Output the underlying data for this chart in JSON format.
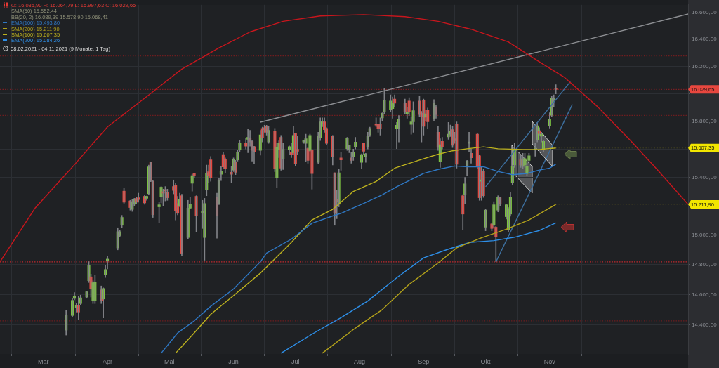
{
  "chart_data": {
    "type": "candlestick",
    "title": "O: 16.035,90  H: 16.064,79  L: 15.997,63  C: 16.029,65",
    "subtitle": "08.02.2021 - 04.11.2021  (9 Monate, 1 Tag)",
    "x": [
      "2021-03-12",
      "2021-03-15",
      "2021-03-16",
      "2021-03-17",
      "2021-03-18",
      "2021-03-19",
      "2021-03-22",
      "2021-03-23",
      "2021-03-24",
      "2021-03-25",
      "2021-03-26",
      "2021-03-29",
      "2021-03-30",
      "2021-03-31",
      "2021-04-01",
      "2021-04-06",
      "2021-04-07",
      "2021-04-08",
      "2021-04-09",
      "2021-04-12",
      "2021-04-13",
      "2021-04-14",
      "2021-04-15",
      "2021-04-16",
      "2021-04-19",
      "2021-04-20",
      "2021-04-21",
      "2021-04-22",
      "2021-04-23",
      "2021-04-26",
      "2021-04-27",
      "2021-04-28",
      "2021-04-29",
      "2021-04-30",
      "2021-05-03",
      "2021-05-04",
      "2021-05-05",
      "2021-05-06",
      "2021-05-07",
      "2021-05-10",
      "2021-05-11",
      "2021-05-12",
      "2021-05-13",
      "2021-05-14",
      "2021-05-17",
      "2021-05-18",
      "2021-05-19",
      "2021-05-20",
      "2021-05-21",
      "2021-05-24",
      "2021-05-25",
      "2021-05-26",
      "2021-05-27",
      "2021-05-28",
      "2021-05-31",
      "2021-06-01",
      "2021-06-02",
      "2021-06-03",
      "2021-06-04",
      "2021-06-07",
      "2021-06-08",
      "2021-06-09",
      "2021-06-10",
      "2021-06-11",
      "2021-06-14",
      "2021-06-15",
      "2021-06-16",
      "2021-06-17",
      "2021-06-18",
      "2021-06-21",
      "2021-06-22",
      "2021-06-23",
      "2021-06-24",
      "2021-06-25",
      "2021-06-28",
      "2021-06-29",
      "2021-06-30",
      "2021-07-01",
      "2021-07-02",
      "2021-07-05",
      "2021-07-06",
      "2021-07-07",
      "2021-07-08",
      "2021-07-09",
      "2021-07-12",
      "2021-07-13",
      "2021-07-14",
      "2021-07-15",
      "2021-07-16",
      "2021-07-19",
      "2021-07-20",
      "2021-07-21",
      "2021-07-22",
      "2021-07-23",
      "2021-07-26",
      "2021-07-27",
      "2021-07-28",
      "2021-07-29",
      "2021-07-30",
      "2021-08-02",
      "2021-08-03",
      "2021-08-04",
      "2021-08-05",
      "2021-08-06",
      "2021-08-09",
      "2021-08-10",
      "2021-08-11",
      "2021-08-12",
      "2021-08-13",
      "2021-08-16",
      "2021-08-17",
      "2021-08-18",
      "2021-08-19",
      "2021-08-20",
      "2021-08-23",
      "2021-08-24",
      "2021-08-25",
      "2021-08-26",
      "2021-08-27",
      "2021-08-30",
      "2021-08-31",
      "2021-09-01",
      "2021-09-02",
      "2021-09-03",
      "2021-09-06",
      "2021-09-07",
      "2021-09-08",
      "2021-09-09",
      "2021-09-10",
      "2021-09-13",
      "2021-09-14",
      "2021-09-15",
      "2021-09-16",
      "2021-09-17",
      "2021-09-20",
      "2021-09-21",
      "2021-09-22",
      "2021-09-23",
      "2021-09-24",
      "2021-09-27",
      "2021-09-28",
      "2021-09-29",
      "2021-09-30",
      "2021-10-01",
      "2021-10-04",
      "2021-10-05",
      "2021-10-06",
      "2021-10-07",
      "2021-10-08",
      "2021-10-11",
      "2021-10-12",
      "2021-10-13",
      "2021-10-14",
      "2021-10-15",
      "2021-10-18",
      "2021-10-19",
      "2021-10-20",
      "2021-10-21",
      "2021-10-22",
      "2021-10-25",
      "2021-10-26",
      "2021-10-27",
      "2021-10-28",
      "2021-10-29",
      "2021-11-01",
      "2021-11-02",
      "2021-11-03",
      "2021-11-04"
    ],
    "ohlc": [
      [
        14365,
        14496,
        14333,
        14461
      ],
      [
        14461,
        14574,
        14450,
        14561
      ],
      [
        14574,
        14613,
        14565,
        14591
      ],
      [
        14514,
        14544,
        14484,
        14527
      ],
      [
        14527,
        14591,
        14432,
        14484
      ],
      [
        14540,
        14596,
        14530,
        14578
      ],
      [
        14583,
        14622,
        14575,
        14618
      ],
      [
        14692,
        14820,
        14680,
        14793
      ],
      [
        14718,
        14736,
        14583,
        14640
      ],
      [
        14561,
        14692,
        14540,
        14679
      ],
      [
        14561,
        14727,
        14540,
        14683
      ],
      [
        14631,
        14657,
        14540,
        14561
      ],
      [
        14570,
        14645,
        14445,
        14640
      ],
      [
        14732,
        14793,
        14714,
        14767
      ],
      [
        14828,
        14859,
        14771,
        14837
      ],
      [
        14913,
        15051,
        14900,
        15024
      ],
      [
        14997,
        15032,
        14990,
        15024
      ],
      [
        15068,
        15136,
        15051,
        15122
      ],
      [
        15304,
        15327,
        15220,
        15227
      ],
      [
        15236,
        15240,
        15172,
        15190
      ],
      [
        15177,
        15245,
        15163,
        15227
      ],
      [
        15213,
        15254,
        15200,
        15245
      ],
      [
        15254,
        15263,
        15218,
        15227
      ],
      [
        15258,
        15290,
        15227,
        15245
      ],
      [
        15268,
        15276,
        15213,
        15222
      ],
      [
        15254,
        15270,
        15240,
        15268
      ],
      [
        15286,
        15487,
        15280,
        15474
      ],
      [
        15506,
        15510,
        15370,
        15377
      ],
      [
        15373,
        15377,
        15122,
        15141
      ],
      [
        15195,
        15227,
        15086,
        15209
      ],
      [
        15263,
        15336,
        15222,
        15332
      ],
      [
        15300,
        15318,
        15204,
        15290
      ],
      [
        15313,
        15336,
        15236,
        15305
      ],
      [
        15295,
        15318,
        15240,
        15258
      ],
      [
        15336,
        15382,
        15285,
        15309
      ],
      [
        15345,
        15359,
        15104,
        15168
      ],
      [
        15218,
        15268,
        15140,
        15150
      ],
      [
        15204,
        15290,
        15195,
        15249
      ],
      [
        15272,
        15282,
        14859,
        14877
      ],
      [
        14984,
        15240,
        14975,
        15186
      ],
      [
        15186,
        15263,
        15180,
        15213
      ],
      [
        15359,
        15422,
        15304,
        15413
      ],
      [
        15427,
        15431,
        15400,
        15409
      ],
      [
        15268,
        15272,
        15024,
        15131
      ],
      [
        15154,
        15240,
        15046,
        15163
      ],
      [
        14984,
        15254,
        14830,
        15218
      ],
      [
        15313,
        15487,
        15272,
        15431
      ],
      [
        15440,
        15487,
        15364,
        15409
      ],
      [
        15524,
        15547,
        15373,
        15395
      ],
      [
        15263,
        15290,
        14979,
        15131
      ],
      [
        15218,
        15391,
        15210,
        15382
      ],
      [
        15422,
        15478,
        15377,
        15445
      ],
      [
        15561,
        15580,
        15460,
        15474
      ],
      [
        15529,
        15538,
        15430,
        15460
      ],
      [
        15436,
        15478,
        15364,
        15422
      ],
      [
        15451,
        15538,
        15440,
        15529
      ],
      [
        15510,
        15520,
        15420,
        15436
      ],
      [
        15524,
        15594,
        15515,
        15575
      ],
      [
        15594,
        15660,
        15580,
        15640
      ],
      [
        15640,
        15680,
        15600,
        15620
      ],
      [
        15669,
        15743,
        15575,
        15683
      ],
      [
        15678,
        15734,
        15620,
        15650
      ],
      [
        15655,
        15664,
        15515,
        15590
      ],
      [
        15617,
        15620,
        15496,
        15580
      ],
      [
        15590,
        15734,
        15557,
        15701
      ],
      [
        15748,
        15757,
        15650,
        15678
      ],
      [
        15753,
        15771,
        15720,
        15739
      ],
      [
        15762,
        15771,
        15700,
        15720
      ],
      [
        15650,
        15762,
        15640,
        15734
      ],
      [
        15725,
        15748,
        15440,
        15460
      ],
      [
        15400,
        15645,
        15327,
        15612
      ],
      [
        15594,
        15659,
        15540,
        15645
      ],
      [
        15683,
        15697,
        15450,
        15465
      ],
      [
        15533,
        15640,
        15455,
        15598
      ],
      [
        15594,
        15622,
        15560,
        15617
      ],
      [
        15580,
        15640,
        15540,
        15561
      ],
      [
        15575,
        15762,
        15560,
        15697
      ],
      [
        15711,
        15715,
        15480,
        15496
      ],
      [
        15598,
        15690,
        15560,
        15584
      ],
      [
        15650,
        15660,
        15640,
        15655
      ],
      [
        15640,
        15706,
        15510,
        15673
      ],
      [
        15603,
        15610,
        15500,
        15520
      ],
      [
        15589,
        15706,
        15580,
        15697
      ],
      [
        15594,
        15598,
        15318,
        15427
      ],
      [
        15506,
        15720,
        15496,
        15692
      ],
      [
        15678,
        15823,
        15660,
        15795
      ],
      [
        15781,
        15823,
        15760,
        15795
      ],
      [
        15795,
        15823,
        15720,
        15739
      ],
      [
        15748,
        15753,
        15630,
        15641
      ],
      [
        15692,
        15697,
        15487,
        15547
      ],
      [
        15432,
        15432,
        15068,
        15150
      ],
      [
        15249,
        15309,
        15113,
        15231
      ],
      [
        15213,
        15460,
        15195,
        15432
      ],
      [
        15538,
        15580,
        15450,
        15524
      ],
      [
        15603,
        15683,
        15590,
        15678
      ],
      [
        15594,
        15630,
        15575,
        15627
      ],
      [
        15538,
        15580,
        15500,
        15520
      ],
      [
        15547,
        15600,
        15520,
        15580
      ],
      [
        15617,
        15683,
        15600,
        15650
      ],
      [
        15506,
        15566,
        15460,
        15561
      ],
      [
        15641,
        15645,
        15560,
        15584
      ],
      [
        15547,
        15570,
        15506,
        15566
      ],
      [
        15617,
        15720,
        15600,
        15692
      ],
      [
        15701,
        15757,
        15690,
        15748
      ],
      [
        15781,
        15823,
        15760,
        15771
      ],
      [
        15776,
        15780,
        15720,
        15748
      ],
      [
        15776,
        15823,
        15700,
        15748
      ],
      [
        15823,
        15860,
        15800,
        15856
      ],
      [
        15866,
        16040,
        15850,
        15950
      ],
      [
        15884,
        15990,
        15870,
        15946
      ],
      [
        15890,
        15975,
        15820,
        15930
      ],
      [
        15960,
        15990,
        15900,
        15930
      ],
      [
        15743,
        15790,
        15603,
        15771
      ],
      [
        15743,
        15840,
        15650,
        15813
      ],
      [
        15930,
        15960,
        15850,
        15866
      ],
      [
        15855,
        15900,
        15820,
        15866
      ],
      [
        15946,
        15970,
        15840,
        15866
      ],
      [
        15776,
        15832,
        15706,
        15795
      ],
      [
        15795,
        15940,
        15720,
        15875
      ],
      [
        15946,
        15980,
        15830,
        15847
      ],
      [
        15856,
        15870,
        15650,
        15832
      ],
      [
        15950,
        15960,
        15700,
        15762
      ],
      [
        15828,
        15880,
        15800,
        15852
      ],
      [
        15880,
        15894,
        15743,
        15795
      ],
      [
        15818,
        15955,
        15800,
        15932
      ],
      [
        15903,
        15913,
        15820,
        15847
      ],
      [
        15720,
        15762,
        15590,
        15612
      ],
      [
        15510,
        15673,
        15470,
        15631
      ],
      [
        15655,
        15683,
        15600,
        15617
      ],
      [
        15687,
        15790,
        15669,
        15706
      ],
      [
        15706,
        15772,
        15690,
        15725
      ],
      [
        15739,
        15762,
        15610,
        15627
      ],
      [
        15673,
        15720,
        15640,
        15659
      ],
      [
        15776,
        15795,
        15465,
        15492
      ],
      [
        15272,
        15280,
        15037,
        15145
      ],
      [
        15282,
        15400,
        15218,
        15355
      ],
      [
        15474,
        15520,
        15409,
        15515
      ],
      [
        15641,
        15720,
        15580,
        15650
      ],
      [
        15570,
        15600,
        15500,
        15538
      ],
      [
        15706,
        15710,
        15460,
        15478
      ],
      [
        15552,
        15560,
        15240,
        15258
      ],
      [
        15373,
        15480,
        15240,
        15382
      ],
      [
        15446,
        15460,
        15260,
        15272
      ],
      [
        15055,
        15180,
        15030,
        15172
      ],
      [
        15077,
        15080,
        15030,
        15046
      ],
      [
        15068,
        15231,
        15050,
        15209
      ],
      [
        15055,
        15060,
        14820,
        14988
      ],
      [
        15172,
        15272,
        15160,
        15263
      ],
      [
        15258,
        15263,
        15200,
        15218
      ],
      [
        15127,
        15215,
        15110,
        15209
      ],
      [
        15037,
        15190,
        15020,
        15181
      ],
      [
        15145,
        15295,
        15130,
        15263
      ],
      [
        15364,
        15485,
        15350,
        15478
      ],
      [
        15487,
        15640,
        15470,
        15594
      ],
      [
        15524,
        15560,
        15470,
        15487
      ],
      [
        15478,
        15570,
        15460,
        15533
      ],
      [
        15487,
        15570,
        15470,
        15533
      ],
      [
        15427,
        15500,
        15410,
        15478
      ],
      [
        15520,
        15570,
        15500,
        15552
      ],
      [
        15594,
        15640,
        15550,
        15608
      ],
      [
        15664,
        15790,
        15650,
        15767
      ],
      [
        15729,
        15753,
        15700,
        15711
      ],
      [
        15692,
        15720,
        15650,
        15706
      ],
      [
        15594,
        15664,
        15580,
        15655
      ],
      [
        15767,
        15860,
        15750,
        15813
      ],
      [
        15842,
        15980,
        15830,
        15965
      ],
      [
        15955,
        15990,
        15900,
        15960
      ],
      [
        16035.9,
        16064.79,
        15997.63,
        16029.65
      ]
    ],
    "colors": [
      "#7cc242",
      "#7cc242",
      "#7cc242",
      "#7cc242",
      "#e8473f",
      "#7cc242",
      "#7cc242",
      "#7cc242",
      "#e8473f",
      "#7cc242",
      "#7cc242",
      "#e8473f",
      "#7cc242",
      "#7cc242",
      "#7cc242",
      "#7cc242",
      "#7cc242",
      "#7cc242",
      "#e8473f",
      "#e8473f",
      "#7cc242",
      "#7cc242",
      "#e8473f",
      "#e8473f",
      "#e8473f",
      "#7cc242",
      "#7cc242",
      "#e8473f",
      "#e8473f",
      "#7cc242",
      "#7cc242",
      "#e8473f",
      "#e8473f",
      "#e8473f",
      "#e8473f",
      "#e8473f",
      "#e8473f",
      "#7cc242",
      "#e8473f",
      "#7cc242",
      "#7cc242",
      "#7cc242",
      "#e8473f",
      "#e8473f",
      "#7cc242",
      "#7cc242",
      "#7cc242",
      "#e8473f",
      "#e8473f",
      "#e8473f",
      "#7cc242",
      "#7cc242",
      "#e8473f",
      "#e8473f",
      "#e8473f",
      "#7cc242",
      "#e8473f",
      "#7cc242",
      "#7cc242",
      "#e8473f",
      "#7cc242",
      "#e8473f",
      "#e8473f",
      "#e8473f",
      "#7cc242",
      "#e8473f",
      "#e8473f",
      "#e8473f",
      "#7cc242",
      "#e8473f",
      "#7cc242",
      "#7cc242",
      "#e8473f",
      "#7cc242",
      "#7cc242",
      "#e8473f",
      "#7cc242",
      "#e8473f",
      "#e8473f",
      "#7cc242",
      "#7cc242",
      "#e8473f",
      "#7cc242",
      "#e8473f",
      "#7cc242",
      "#7cc242",
      "#7cc242",
      "#e8473f",
      "#e8473f",
      "#e8473f",
      "#e8473f",
      "#e8473f",
      "#7cc242",
      "#e8473f",
      "#7cc242",
      "#7cc242",
      "#e8473f",
      "#7cc242",
      "#7cc242",
      "#7cc242",
      "#e8473f",
      "#7cc242",
      "#7cc242",
      "#7cc242",
      "#e8473f",
      "#e8473f",
      "#e8473f",
      "#7cc242",
      "#7cc242",
      "#7cc242",
      "#7cc242",
      "#e8473f",
      "#7cc242",
      "#7cc242",
      "#e8473f",
      "#7cc242",
      "#e8473f",
      "#7cc242",
      "#7cc242",
      "#e8473f",
      "#e8473f",
      "#e8473f",
      "#7cc242",
      "#e8473f",
      "#7cc242",
      "#e8473f",
      "#e8473f",
      "#7cc242",
      "#e8473f",
      "#7cc242",
      "#7cc242",
      "#e8473f",
      "#e8473f",
      "#e8473f",
      "#e8473f",
      "#7cc242",
      "#7cc242",
      "#7cc242",
      "#e8473f",
      "#e8473f",
      "#e8473f",
      "#7cc242",
      "#e8473f",
      "#7cc242",
      "#e8473f",
      "#7cc242",
      "#e8473f",
      "#7cc242",
      "#e8473f",
      "#7cc242",
      "#7cc242",
      "#7cc242",
      "#7cc242",
      "#7cc242",
      "#e8473f",
      "#7cc242",
      "#7cc242",
      "#7cc242",
      "#7cc242",
      "#7cc242",
      "#7cc242",
      "#e8473f",
      "#7cc242",
      "#7cc242",
      "#7cc242",
      "#7cc242",
      "#7cc242",
      "#e8473f"
    ],
    "series": [
      {
        "type": "line",
        "name": "EMA(100)  15.493,80",
        "color": "#2f78c4",
        "x": [
          "2021-04-27",
          "2021-05-05",
          "2021-05-13",
          "2021-05-21",
          "2021-06-01",
          "2021-06-14",
          "2021-06-17",
          "2021-06-29",
          "2021-07-09",
          "2021-07-19",
          "2021-07-23",
          "2021-08-03",
          "2021-08-12",
          "2021-08-19",
          "2021-09-01",
          "2021-09-08",
          "2021-09-16",
          "2021-09-23",
          "2021-09-30",
          "2021-10-07",
          "2021-10-14",
          "2021-10-21",
          "2021-10-27",
          "2021-11-01",
          "2021-11-04"
        ],
        "values": [
          14215,
          14347,
          14426,
          14522,
          14637,
          14819,
          14878,
          14973,
          15082,
          15132,
          15150,
          15219,
          15279,
          15335,
          15428,
          15456,
          15480,
          15475,
          15475,
          15442,
          15419,
          15428,
          15452,
          15465,
          15493.8
        ]
      },
      {
        "type": "line",
        "name": "SMA(200)  15.211,90",
        "color": "#b3a21b",
        "x": [
          "2021-07-14",
          "2021-07-29",
          "2021-08-12",
          "2021-08-25",
          "2021-09-08",
          "2021-09-17",
          "2021-09-29",
          "2021-10-11",
          "2021-10-22",
          "2021-11-04"
        ],
        "values": [
          14215,
          14369,
          14500,
          14668,
          14811,
          14914,
          14982,
          15041,
          15105,
          15211.9
        ],
        "value_labels": [
          null,
          null,
          null,
          null,
          null,
          null,
          null,
          null,
          null,
          "15.211,90"
        ]
      },
      {
        "type": "line",
        "name": "SMA(100)  15.607,35",
        "color": "#bdb21f",
        "x": [
          "2021-05-04",
          "2021-05-13",
          "2021-05-21",
          "2021-06-01",
          "2021-06-14",
          "2021-06-29",
          "2021-07-09",
          "2021-07-19",
          "2021-07-29",
          "2021-08-09",
          "2021-08-18",
          "2021-08-30",
          "2021-09-07",
          "2021-09-15",
          "2021-09-22",
          "2021-09-30",
          "2021-10-07",
          "2021-10-19",
          "2021-10-27",
          "2021-11-04"
        ],
        "values": [
          14215,
          14347,
          14469,
          14592,
          14743,
          14950,
          15105,
          15178,
          15302,
          15372,
          15465,
          15522,
          15559,
          15588,
          15602,
          15616,
          15602,
          15597,
          15597,
          15607.35
        ],
        "value_labels": [
          null,
          null,
          null,
          null,
          null,
          null,
          null,
          null,
          null,
          null,
          null,
          null,
          null,
          null,
          null,
          null,
          null,
          null,
          null,
          "15.607,35"
        ]
      },
      {
        "type": "line",
        "name": "EMA(200)  15.084,26",
        "color": "#2e8fe8",
        "x": [
          "2021-06-24",
          "2021-07-09",
          "2021-07-23",
          "2021-08-05",
          "2021-08-19",
          "2021-09-01",
          "2021-09-13",
          "2021-09-23",
          "2021-10-05",
          "2021-10-15",
          "2021-10-27",
          "2021-11-04"
        ],
        "values": [
          14215,
          14339,
          14447,
          14557,
          14712,
          14846,
          14905,
          14950,
          14963,
          14986,
          15032,
          15084.26
        ]
      },
      {
        "type": "line",
        "color": "#c8161d",
        "x": [
          "2021-02-08",
          "2021-02-25",
          "2021-03-16",
          "2021-04-01",
          "2021-04-21",
          "2021-05-07",
          "2021-05-25",
          "2021-06-09",
          "2021-06-25",
          "2021-07-13",
          "2021-08-03",
          "2021-08-23",
          "2021-09-08",
          "2021-09-24",
          "2021-10-12",
          "2021-10-28",
          "2021-11-08",
          "2021-11-24",
          "2021-12-10",
          "2021-12-23",
          "2022-01-07"
        ],
        "values": [
          14819,
          15187,
          15489,
          15758,
          15989,
          16179,
          16336,
          16455,
          16535,
          16575,
          16585,
          16570,
          16535,
          16475,
          16381,
          16223,
          16120,
          15907,
          15663,
          15456,
          15212
        ]
      },
      {
        "type": "line",
        "color": "#8e9094",
        "x": [
          "2021-06-14",
          "2022-01-07"
        ],
        "values": [
          15792,
          16590
        ]
      },
      {
        "type": "line",
        "color": "#3d6f9e",
        "x": [
          "2021-10-06",
          "2021-11-12"
        ],
        "values": [
          14819,
          15921
        ]
      },
      {
        "type": "line",
        "color": "#3d6f9e",
        "x": [
          "2021-10-01",
          "2021-11-11"
        ],
        "values": [
          15335,
          16086
        ]
      }
    ],
    "ref_lines": [
      {
        "axis": "y",
        "value": 16277,
        "color": "#6e1d1f",
        "line_style": "dotted"
      },
      {
        "axis": "y",
        "value": 16030,
        "color": "#7a1f22",
        "line_style": "dotted"
      },
      {
        "axis": "y",
        "value": 15841,
        "color": "#6e1d1f",
        "line_style": "dotted"
      },
      {
        "axis": "y",
        "value": 14819,
        "color": "#c0282d",
        "line_style": "dotted"
      },
      {
        "axis": "y",
        "value": 14426,
        "color": "#6e1d1f",
        "line_style": "dotted"
      }
    ],
    "annotations": [
      "SMA(50)  15.552,44",
      "BB(20, 2)  16.089,39  15.578,90  15.068,41"
    ],
    "value_labels": [
      null,
      null,
      null,
      null,
      null,
      null,
      null,
      null,
      null,
      null,
      null,
      null,
      null,
      null,
      null,
      null,
      null,
      null,
      null,
      null,
      null,
      null,
      null,
      null,
      null,
      null,
      null,
      null,
      null,
      null,
      null,
      null,
      null,
      null,
      null,
      null,
      null,
      null,
      null,
      null,
      null,
      null,
      null,
      null,
      null,
      null,
      null,
      null,
      null,
      null,
      null,
      null,
      null,
      null,
      null,
      null,
      null,
      null,
      null,
      null,
      null,
      null,
      null,
      null,
      null,
      null,
      null,
      null,
      null,
      null,
      null,
      null,
      null,
      null,
      null,
      null,
      null,
      null,
      null,
      null,
      null,
      null,
      null,
      null,
      null,
      null,
      null,
      null,
      null,
      null,
      null,
      null,
      null,
      null,
      null,
      null,
      null,
      null,
      null,
      null,
      null,
      null,
      null,
      null,
      null,
      null,
      null,
      null,
      null,
      null,
      null,
      null,
      null,
      null,
      null,
      null,
      null,
      null,
      null,
      null,
      null,
      null,
      null,
      null,
      null,
      null,
      null,
      null,
      null,
      null,
      null,
      null,
      null,
      null,
      null,
      null,
      null,
      null,
      null,
      null,
      null,
      null,
      null,
      null,
      null,
      null,
      null,
      null,
      null,
      null,
      null,
      null,
      null,
      null,
      null,
      null,
      null,
      null,
      null,
      null,
      null,
      null,
      null,
      null,
      null,
      null,
      null,
      "16.029,65"
    ],
    "xlim": [
      "2021-02-08",
      "2022-01-07"
    ],
    "xticks": [
      {
        "value": "2021-03-01",
        "label": "Mär"
      },
      {
        "value": "2021-04-01",
        "label": "Apr"
      },
      {
        "value": "2021-05-01",
        "label": "Mai"
      },
      {
        "value": "2021-06-01",
        "label": "Jun"
      },
      {
        "value": "2021-07-01",
        "label": "Jul"
      },
      {
        "value": "2021-08-01",
        "label": "Aug"
      },
      {
        "value": "2021-09-01",
        "label": "Sep"
      },
      {
        "value": "2021-10-01",
        "label": "Okt"
      },
      {
        "value": "2021-11-01",
        "label": "Nov"
      }
    ],
    "ylim": [
      14210,
      16660
    ],
    "yticks": [
      {
        "value": 14400,
        "label": "14.400,00"
      },
      {
        "value": 14600,
        "label": "14.600,00"
      },
      {
        "value": 14800,
        "label": "14.800,00"
      },
      {
        "value": 15000,
        "label": "15.000,00"
      },
      {
        "value": 15200,
        "label": null
      },
      {
        "value": 15400,
        "label": "15.400,00"
      },
      {
        "value": 15600,
        "label": null
      },
      {
        "value": 15800,
        "label": "15.800,00"
      },
      {
        "value": 16000,
        "label": null
      },
      {
        "value": 16200,
        "label": "16.200,00"
      },
      {
        "value": 16400,
        "label": "16.400,00"
      },
      {
        "value": 16600,
        "label": "16.600,00"
      }
    ],
    "log": true,
    "grid": true,
    "legend": "top left",
    "marker": "none"
  }
}
